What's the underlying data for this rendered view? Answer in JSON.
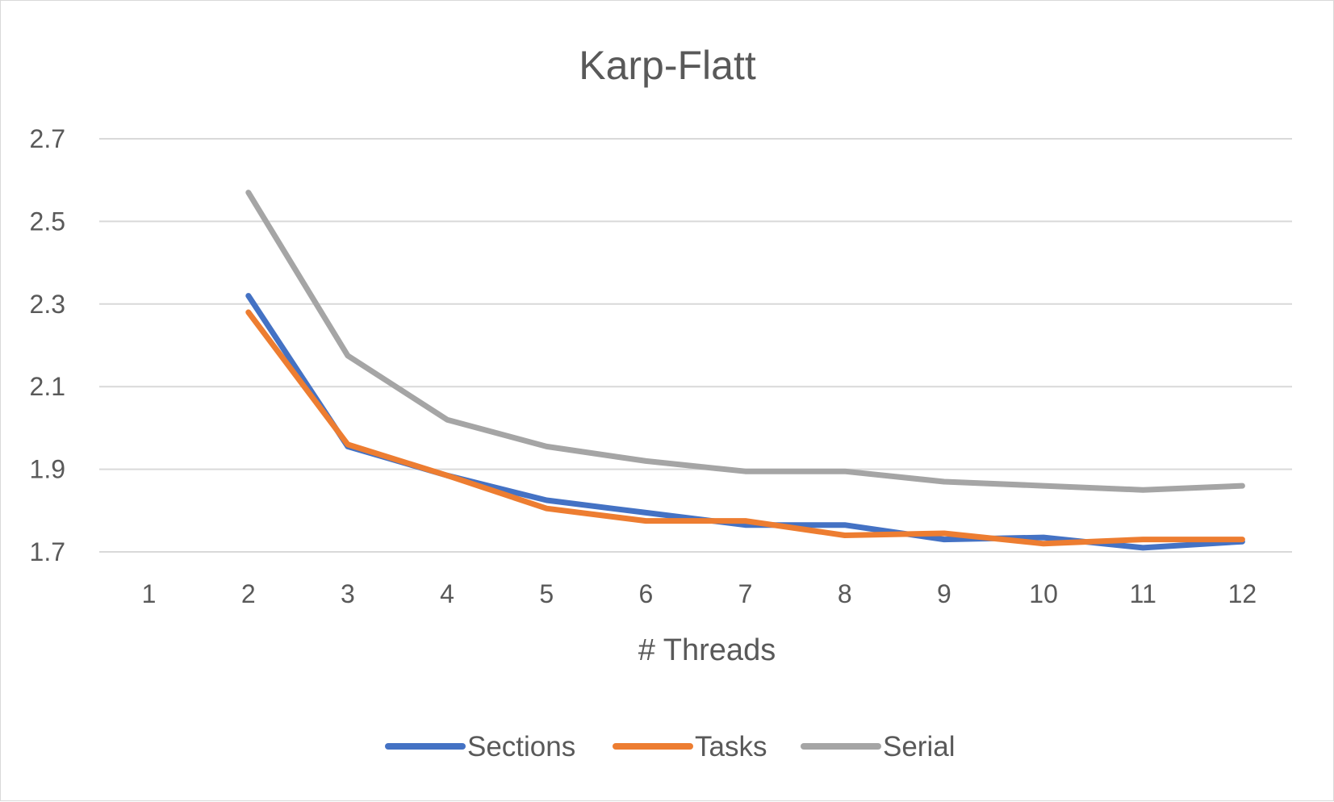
{
  "chart_data": {
    "type": "line",
    "title": "Karp-Flatt",
    "xlabel": "# Threads",
    "ylabel": "",
    "categories": [
      "1",
      "2",
      "3",
      "4",
      "5",
      "6",
      "7",
      "8",
      "9",
      "10",
      "11",
      "12"
    ],
    "y_ticks": [
      "2.7",
      "2.5",
      "2.3",
      "2.1",
      "1.9",
      "1.7"
    ],
    "ylim": [
      1.7,
      2.7
    ],
    "grid": true,
    "legend_position": "bottom",
    "series": [
      {
        "name": "Sections",
        "color": "#4472C4",
        "values": [
          null,
          2.32,
          1.955,
          1.885,
          1.825,
          1.795,
          1.765,
          1.765,
          1.73,
          1.735,
          1.71,
          1.725
        ]
      },
      {
        "name": "Tasks",
        "color": "#ED7D31",
        "values": [
          null,
          2.28,
          1.96,
          1.885,
          1.805,
          1.775,
          1.775,
          1.74,
          1.745,
          1.72,
          1.73,
          1.73
        ]
      },
      {
        "name": "Serial",
        "color": "#A5A5A5",
        "values": [
          null,
          2.57,
          2.175,
          2.02,
          1.955,
          1.92,
          1.895,
          1.895,
          1.87,
          1.86,
          1.85,
          1.86
        ]
      }
    ]
  }
}
